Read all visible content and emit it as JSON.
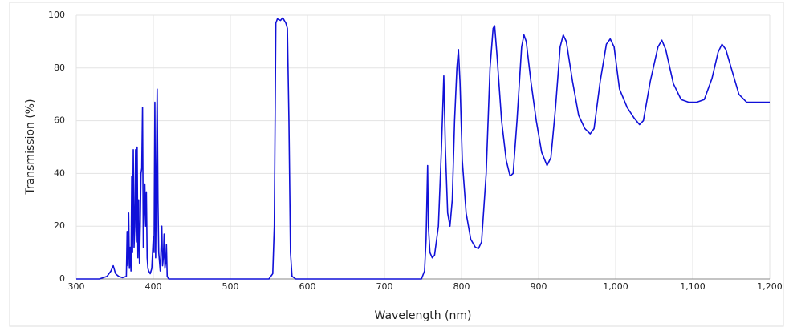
{
  "chart_data": {
    "type": "line",
    "x_label": "Wavelength (nm)",
    "y_label": "Transmission (%)",
    "x": [
      300,
      330,
      340,
      345,
      348,
      351,
      355,
      360,
      365,
      366,
      367,
      368,
      369,
      370,
      371,
      372,
      373,
      374,
      375,
      376,
      377,
      378,
      379,
      380,
      381,
      382,
      383,
      384,
      385,
      386,
      387,
      388,
      389,
      390,
      391,
      392,
      393,
      394,
      396,
      398,
      400,
      401,
      402,
      403,
      404,
      405,
      406,
      407,
      409,
      411,
      412,
      413,
      414,
      415,
      416,
      417,
      418,
      420,
      430,
      500,
      550,
      555,
      557,
      559,
      561,
      565,
      568,
      572,
      574,
      576,
      578,
      580,
      585,
      700,
      748,
      752,
      754,
      756,
      757,
      759,
      762,
      765,
      770,
      774,
      777,
      779,
      782,
      785,
      788,
      791,
      794,
      796,
      798,
      801,
      806,
      812,
      818,
      822,
      826,
      832,
      837,
      841,
      843,
      846,
      852,
      858,
      863,
      867,
      872,
      878,
      881,
      884,
      890,
      897,
      904,
      911,
      916,
      922,
      928,
      932,
      936,
      944,
      952,
      960,
      967,
      972,
      980,
      988,
      993,
      998,
      1005,
      1015,
      1024,
      1031,
      1036,
      1045,
      1055,
      1060,
      1065,
      1075,
      1085,
      1095,
      1105,
      1115,
      1125,
      1133,
      1138,
      1143,
      1150,
      1160,
      1170,
      1180,
      1190,
      1200
    ],
    "series": [
      {
        "color": "#1010d8",
        "values": [
          0,
          0,
          1,
          3,
          5,
          2,
          1,
          0.5,
          1,
          18,
          5,
          25,
          4,
          12,
          3,
          39,
          10,
          49,
          12,
          20,
          49,
          14,
          50,
          8,
          30,
          6,
          20,
          40,
          42,
          65,
          12,
          24,
          36,
          20,
          33,
          8,
          4,
          3,
          2,
          4,
          16,
          10,
          67,
          8,
          40,
          72,
          30,
          10,
          3,
          20,
          5,
          8,
          17,
          4,
          6,
          13,
          1,
          0,
          0,
          0,
          0,
          2,
          20,
          97,
          98.6,
          98,
          99,
          97,
          95,
          60,
          10,
          1,
          0,
          0,
          0,
          3,
          15,
          43,
          20,
          10,
          8,
          9,
          20,
          50,
          77,
          50,
          25,
          20,
          30,
          60,
          80,
          87,
          75,
          45,
          25,
          15,
          12,
          11.5,
          14,
          40,
          80,
          95,
          96,
          85,
          60,
          45,
          39,
          40,
          60,
          88,
          92.5,
          90,
          75,
          60,
          48,
          43,
          46,
          65,
          88,
          92.5,
          90,
          75,
          62,
          57,
          55,
          57,
          75,
          89,
          91,
          88,
          72,
          65,
          61,
          58.5,
          60,
          75,
          88,
          90.5,
          87,
          74,
          68,
          67,
          67,
          68,
          76,
          86,
          89,
          87,
          80,
          70,
          67,
          67,
          67,
          67
        ]
      }
    ],
    "xlim": [
      300,
      1200
    ],
    "xticks": [
      300,
      400,
      500,
      600,
      700,
      800,
      900,
      {
        "value": 1000,
        "label": "1,000"
      },
      {
        "value": 1100,
        "label": "1,100"
      },
      {
        "value": 1200,
        "label": "1,200"
      }
    ],
    "ylim": [
      0,
      100
    ],
    "yticks": [
      0,
      20,
      40,
      60,
      80,
      100
    ],
    "grid": true
  }
}
